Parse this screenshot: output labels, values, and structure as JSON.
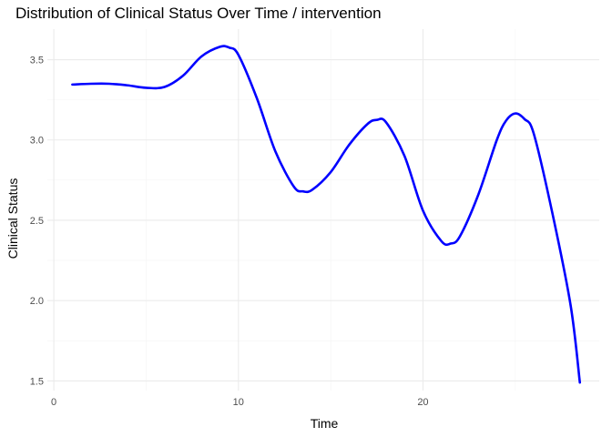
{
  "chart_data": {
    "type": "line",
    "title": "Distribution of Clinical Status Over Time / intervention",
    "xlabel": "Time",
    "ylabel": "Clinical Status",
    "xlim": [
      -0.35,
      29.55
    ],
    "ylim": [
      1.44,
      3.69
    ],
    "x_ticks": [
      0,
      10,
      20
    ],
    "x_minor_ticks": [
      5,
      15,
      25
    ],
    "y_ticks": [
      1.5,
      2.0,
      2.5,
      3.0,
      3.5
    ],
    "y_minor_ticks": [
      1.75,
      2.25,
      2.75,
      3.25
    ],
    "grid": true,
    "legend": "none",
    "series": [
      {
        "color": "#0000ff",
        "x": [
          1,
          2,
          3,
          4,
          5,
          6,
          7,
          8,
          9,
          9.5,
          10,
          11,
          12,
          13,
          13.5,
          14,
          15,
          16,
          17,
          17.5,
          18,
          19,
          20,
          21,
          21.5,
          22,
          23,
          24,
          24.5,
          25,
          25.5,
          26,
          27,
          28,
          28.5
        ],
        "y": [
          3.345,
          3.35,
          3.35,
          3.34,
          3.325,
          3.33,
          3.4,
          3.52,
          3.58,
          3.575,
          3.53,
          3.26,
          2.93,
          2.71,
          2.68,
          2.69,
          2.8,
          2.97,
          3.1,
          3.125,
          3.11,
          2.9,
          2.56,
          2.37,
          2.355,
          2.4,
          2.66,
          3.0,
          3.12,
          3.165,
          3.13,
          3.04,
          2.55,
          1.97,
          1.49
        ]
      }
    ]
  }
}
